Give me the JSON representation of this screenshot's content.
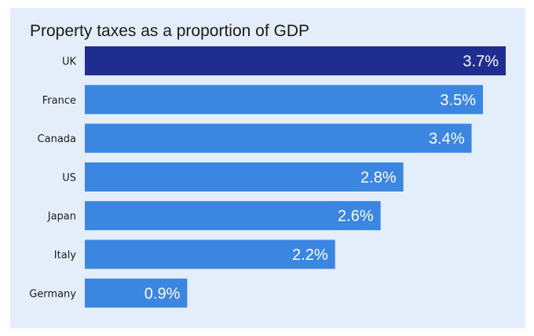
{
  "chart_data": {
    "type": "bar",
    "orientation": "horizontal",
    "title": "Property taxes as a proportion of GDP",
    "categories": [
      "UK",
      "France",
      "Canada",
      "US",
      "Japan",
      "Italy",
      "Germany"
    ],
    "values": [
      3.7,
      3.5,
      3.4,
      2.8,
      2.6,
      2.2,
      0.9
    ],
    "value_labels": [
      "3.7%",
      "3.5%",
      "3.4%",
      "2.8%",
      "2.6%",
      "2.2%",
      "0.9%"
    ],
    "xlim": [
      0,
      3.7
    ],
    "grid": false,
    "colors": {
      "highlight": "#1e2d8f",
      "bar": "#3a86e0",
      "background": "#e3eefa"
    },
    "highlight_index": 0
  }
}
